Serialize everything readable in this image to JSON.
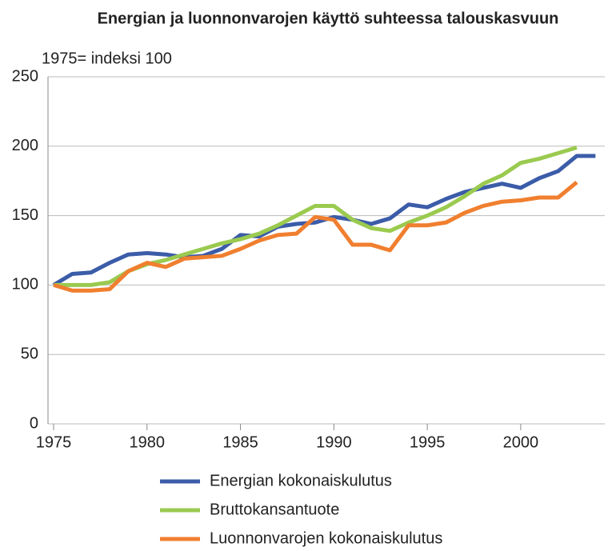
{
  "chart_data": {
    "type": "line",
    "title": "Energian ja luonnonvarojen käyttö suhteessa talouskasvuun",
    "y_label": "1975= indeksi 100",
    "x": [
      1975,
      1976,
      1977,
      1978,
      1979,
      1980,
      1981,
      1982,
      1983,
      1984,
      1985,
      1986,
      1987,
      1988,
      1989,
      1990,
      1991,
      1992,
      1993,
      1994,
      1995,
      1996,
      1997,
      1998,
      1999,
      2000,
      2001,
      2002,
      2003,
      2004
    ],
    "series": [
      {
        "name": "Energian kokonaiskulutus",
        "color": "#3b5ca8",
        "values": [
          100,
          108,
          109,
          116,
          122,
          123,
          122,
          120,
          121,
          126,
          136,
          135,
          142,
          144,
          145,
          149,
          147,
          144,
          148,
          158,
          156,
          162,
          167,
          170,
          173,
          170,
          177,
          182,
          193,
          193
        ]
      },
      {
        "name": "Bruttokansantuote",
        "color": "#9aca4f",
        "values": [
          100,
          100,
          100,
          102,
          110,
          115,
          118,
          122,
          126,
          130,
          133,
          137,
          143,
          150,
          157,
          157,
          147,
          141,
          139,
          145,
          150,
          156,
          164,
          173,
          179,
          188,
          191,
          195,
          199,
          null
        ]
      },
      {
        "name": "Luonnonvarojen kokonaiskulutus",
        "color": "#f07f2f",
        "values": [
          100,
          96,
          96,
          97,
          110,
          116,
          113,
          119,
          120,
          121,
          126,
          132,
          136,
          137,
          149,
          147,
          129,
          129,
          125,
          143,
          143,
          145,
          152,
          157,
          160,
          161,
          163,
          163,
          174,
          null
        ]
      }
    ],
    "xlim": [
      1974.7,
      2004.5
    ],
    "xticks": [
      1975,
      1980,
      1985,
      1990,
      1995,
      2000
    ],
    "ylim": [
      0,
      250
    ],
    "yticks": [
      0,
      50,
      100,
      150,
      200,
      250
    ],
    "grid": true,
    "legend": "bottom"
  }
}
